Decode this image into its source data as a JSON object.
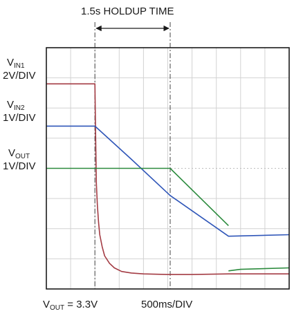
{
  "chart_data": {
    "type": "line",
    "title": "",
    "holdup_label": "1.5s HOLDUP TIME",
    "x_scale": "500ms/DIV",
    "x_divisions": 10,
    "y_divisions": 8,
    "grid": true,
    "note_vout_prefix": "V",
    "note_vout_sub": "OUT",
    "note_vout_value": " = 3.3V",
    "channel_labels": [
      {
        "prefix": "V",
        "sub": "IN1",
        "scale": "2V/DIV"
      },
      {
        "prefix": "V",
        "sub": "IN2",
        "scale": "1V/DIV"
      },
      {
        "prefix": "V",
        "sub": "OUT",
        "scale": "1V/DIV"
      }
    ],
    "markers_div": [
      2.0,
      5.1
    ],
    "series": [
      {
        "id": "vin1",
        "color": "#a33b43",
        "x_div": [
          0,
          2.0,
          2.03,
          2.06,
          2.1,
          2.15,
          2.2,
          2.3,
          2.4,
          2.6,
          2.8,
          3.1,
          3.5,
          4.0,
          5.0,
          6.0,
          7.5,
          10.0
        ],
        "y_div": [
          1.2,
          1.2,
          3.0,
          4.5,
          5.2,
          5.8,
          6.2,
          6.6,
          6.9,
          7.15,
          7.3,
          7.42,
          7.47,
          7.5,
          7.52,
          7.52,
          7.5,
          7.5
        ]
      },
      {
        "id": "vin2",
        "color": "#2e55b8",
        "x_div": [
          0,
          2.0,
          3.5,
          5.1,
          7.5,
          10.0
        ],
        "y_div": [
          2.6,
          2.6,
          3.7,
          4.9,
          6.25,
          6.2
        ]
      },
      {
        "id": "vout",
        "color": "#2a8a3c",
        "x_div": [
          0,
          5.1,
          7.5
        ],
        "y_div": [
          4.0,
          4.0,
          5.9
        ]
      },
      {
        "id": "vout-recovery",
        "color": "#2a8a3c",
        "x_div": [
          7.5,
          8.0,
          10.0
        ],
        "y_div": [
          7.4,
          7.35,
          7.3
        ]
      }
    ]
  }
}
